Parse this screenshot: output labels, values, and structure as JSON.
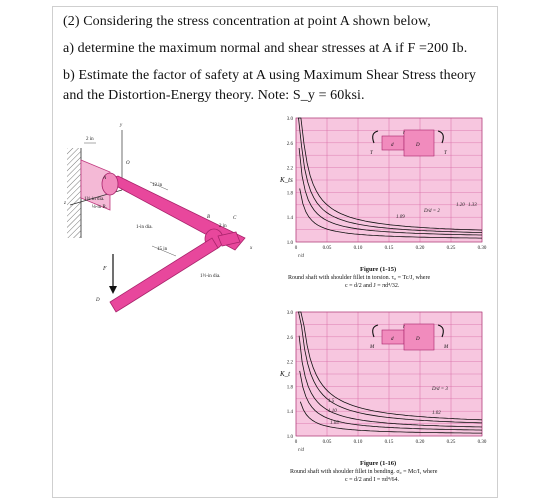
{
  "question": {
    "line1": "(2) Considering the stress concentration at point A shown below,",
    "line2": "a) determine the maximum normal and shear stresses at A if F =200 Ib.",
    "line3": "b) Estimate the factor of safety at A using Maximum Shear Stress theory",
    "line4": "and the Distortion-Energy theory. Note: S_y = 60ksi."
  },
  "diagram": {
    "labels": {
      "dim_2in": "2 in",
      "y": "y",
      "o": "O",
      "dia_1_5": "1½-in dia.",
      "r_quarter": "⅛-in R.",
      "len_12": "12 in",
      "dia_1": "1-in dia.",
      "b": "B",
      "c": "C",
      "dim_2in_b": "2 in",
      "len_15": "15 in",
      "dia_small": "1½-in dia.",
      "f": "F",
      "d": "D",
      "a": "A",
      "x": "x",
      "z": "z"
    }
  },
  "figure_torsion": {
    "title": "Figure (1-15)",
    "caption1": "Round shaft with shoulder fillet in torsion. τ₀ = Tc/J, where",
    "caption2": "c = d/2 and J = πd⁴/32.",
    "ylabel": "K_ts",
    "xlabel": "r/d",
    "ticks_y": [
      "3.0",
      "2.6",
      "2.2",
      "1.8",
      "1.4",
      "1.0"
    ],
    "ticks_x": [
      "0",
      "0.05",
      "0.10",
      "0.15",
      "0.20",
      "0.25",
      "0.30"
    ],
    "curve_labels": [
      "D/d = 2",
      "1.20",
      "1.33",
      "1.09"
    ],
    "sketch": {
      "t": "T",
      "d_small": "d",
      "d_big": "D",
      "r": "r"
    }
  },
  "figure_bending": {
    "title": "Figure (1-16)",
    "caption1": "Round shaft with shoulder fillet in bending. σ₀ = Mc/I, where",
    "caption2": "c = d/2 and I = πd⁴/64.",
    "ylabel": "K_t",
    "xlabel": "r/d",
    "ticks_y": [
      "3.0",
      "2.6",
      "2.2",
      "1.8",
      "1.4",
      "1.0"
    ],
    "ticks_x": [
      "0",
      "0.05",
      "0.10",
      "0.15",
      "0.20",
      "0.25",
      "0.30"
    ],
    "curve_labels": [
      "D/d = 3",
      "1.5",
      "1.10",
      "1.02",
      "1.05"
    ],
    "sketch": {
      "m": "M",
      "d_small": "d",
      "d_big": "D",
      "r": "r"
    }
  },
  "colors": {
    "shaft_pink": "#e8479c",
    "chart_pink": "#f7c6df",
    "grid": "#d86aa6",
    "frame": "#cfcfcf"
  }
}
